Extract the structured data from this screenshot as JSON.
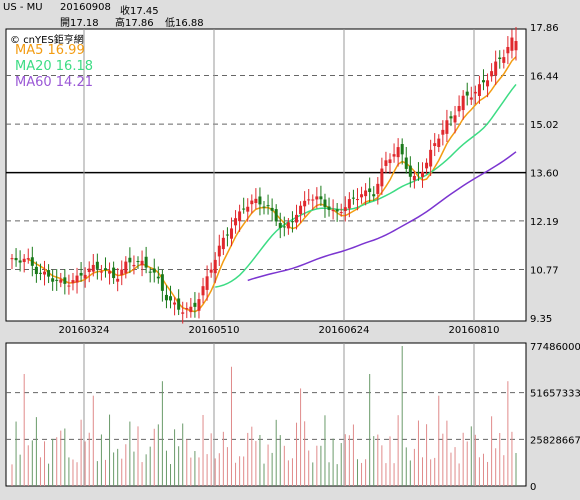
{
  "header": {
    "symbol": "US - MU",
    "date": "20160908",
    "close_label": "收17.45",
    "open_label": "開17.18",
    "high_label": "高17.86",
    "low_label": "低16.88"
  },
  "brand": "cnYES鉅亨網",
  "ma_labels": [
    {
      "text": "MA5 16.99",
      "color": "#f39c12"
    },
    {
      "text": "MA20 16.18",
      "color": "#3ddc84"
    },
    {
      "text": "MA60 14.21",
      "color": "#9b59d6"
    }
  ],
  "colors": {
    "up": "#e0282d",
    "down": "#1a7a1a",
    "ma5": "#f39c12",
    "ma20": "#3ddc84",
    "ma60": "#7b35d0",
    "panel_bg": "#ffffff"
  },
  "chart_data": [
    {
      "type": "candlestick",
      "title": "US - MU",
      "price_ticks": [
        "17.86",
        "16.44",
        "15.02",
        "13.60",
        "12.19",
        "10.77",
        "9.35"
      ],
      "ylim": [
        9.35,
        17.86
      ],
      "x_ticks": [
        "20160324",
        "20160510",
        "20160624",
        "20160810"
      ],
      "reference_line": 13.6,
      "last": {
        "date": "20160908",
        "open": 17.18,
        "high": 17.86,
        "low": 16.88,
        "close": 17.45
      },
      "ma_last": {
        "MA5": 16.99,
        "MA20": 16.18,
        "MA60": 14.21
      },
      "approx_close_path": [
        11.0,
        10.9,
        10.6,
        10.7,
        10.5,
        10.4,
        10.6,
        10.8,
        10.7,
        11.1,
        10.8,
        10.5,
        10.0,
        9.8,
        9.6,
        10.2,
        11.3,
        12.2,
        12.8,
        12.7,
        12.3,
        11.9,
        12.6,
        13.0,
        12.6,
        12.2,
        12.8,
        13.2,
        13.0,
        13.8,
        14.2,
        13.5,
        14.0,
        14.6,
        15.0,
        15.8,
        16.2,
        16.6,
        16.9,
        17.45
      ]
    },
    {
      "type": "bar",
      "title": "Volume",
      "volume_ticks": [
        "77486000",
        "51657333",
        "25828667",
        "0"
      ],
      "ylim": [
        0,
        77486000
      ]
    }
  ]
}
